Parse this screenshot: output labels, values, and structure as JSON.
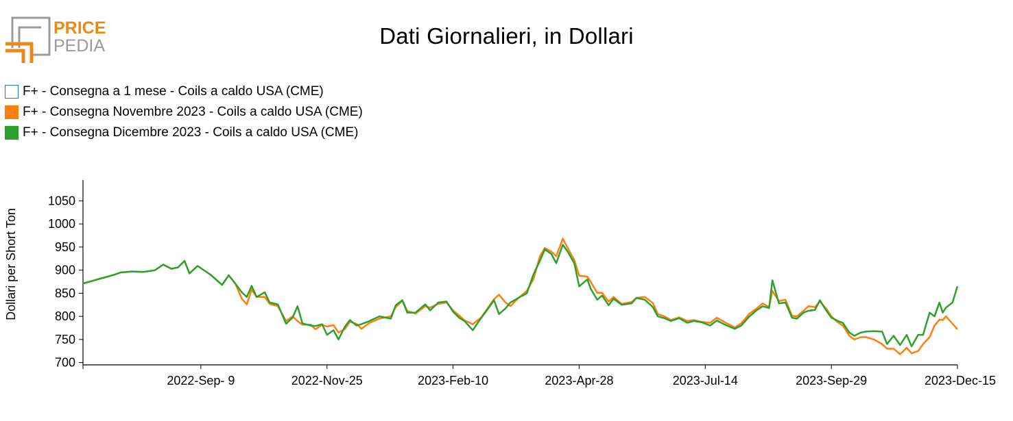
{
  "logo": {
    "word1": "PRICE",
    "word2": "PEDIA"
  },
  "title": "Dati Giornalieri, in Dollari",
  "legend": [
    {
      "label": "F+ - Consegna a 1 mese - Coils a caldo USA (CME)",
      "color": "#1f77b4",
      "filled": false
    },
    {
      "label": "F+ - Consegna Novembre 2023 - Coils a caldo USA (CME)",
      "color": "#ff7f0e",
      "filled": true
    },
    {
      "label": "F+ - Consegna Dicembre 2023 - Coils a caldo USA (CME)",
      "color": "#2ca02c",
      "filled": true
    }
  ],
  "chart_data": {
    "type": "line",
    "title": "Dati Giornalieri, in Dollari",
    "ylabel": "Dollari per Short Ton",
    "xlabel": "",
    "ylim": [
      695,
      1095
    ],
    "xlim": [
      "2022-Jun-29",
      "2023-Dec-15"
    ],
    "x_ticks": [
      "2022-Sep- 9",
      "2022-Nov-25",
      "2023-Feb-10",
      "2023-Apr-28",
      "2023-Jul-14",
      "2023-Sep-29",
      "2023-Dec-15"
    ],
    "y_ticks": [
      700,
      750,
      800,
      850,
      900,
      950,
      1000,
      1050
    ],
    "series": [
      {
        "name": "F+ - Consegna a 1 mese - Coils a caldo USA (CME)",
        "color": "#1f77b4",
        "points": []
      },
      {
        "name": "F+ - Consegna Novembre 2023 - Coils a caldo USA (CME)",
        "color": "#ff7f0e",
        "points": [
          [
            "2022-06-29",
            871
          ],
          [
            "2022-07-08",
            880
          ],
          [
            "2022-07-18",
            890
          ],
          [
            "2022-07-22",
            895
          ],
          [
            "2022-07-29",
            897
          ],
          [
            "2022-08-05",
            896
          ],
          [
            "2022-08-12",
            900
          ],
          [
            "2022-08-17",
            912
          ],
          [
            "2022-08-22",
            903
          ],
          [
            "2022-08-26",
            906
          ],
          [
            "2022-08-30",
            920
          ],
          [
            "2022-09-02",
            893
          ],
          [
            "2022-09-07",
            909
          ],
          [
            "2022-09-12",
            897
          ],
          [
            "2022-09-15",
            890
          ],
          [
            "2022-09-20",
            874
          ],
          [
            "2022-09-22",
            868
          ],
          [
            "2022-09-26",
            889
          ],
          [
            "2022-09-30",
            871
          ],
          [
            "2022-10-04",
            838
          ],
          [
            "2022-10-07",
            826
          ],
          [
            "2022-10-10",
            858
          ],
          [
            "2022-10-13",
            842
          ],
          [
            "2022-10-18",
            842
          ],
          [
            "2022-10-21",
            827
          ],
          [
            "2022-10-26",
            822
          ],
          [
            "2022-10-31",
            790
          ],
          [
            "2022-11-04",
            800
          ],
          [
            "2022-11-07",
            790
          ],
          [
            "2022-11-10",
            782
          ],
          [
            "2022-11-15",
            782
          ],
          [
            "2022-11-18",
            772
          ],
          [
            "2022-11-22",
            782
          ],
          [
            "2022-11-25",
            778
          ],
          [
            "2022-11-29",
            781
          ],
          [
            "2022-12-02",
            765
          ],
          [
            "2022-12-06",
            773
          ],
          [
            "2022-12-09",
            788
          ],
          [
            "2022-12-13",
            784
          ],
          [
            "2022-12-16",
            773
          ],
          [
            "2022-12-21",
            786
          ],
          [
            "2022-12-27",
            795
          ],
          [
            "2023-01-03",
            800
          ],
          [
            "2023-01-06",
            820
          ],
          [
            "2023-01-10",
            834
          ],
          [
            "2023-01-13",
            812
          ],
          [
            "2023-01-18",
            806
          ],
          [
            "2023-01-24",
            822
          ],
          [
            "2023-01-27",
            819
          ],
          [
            "2023-02-01",
            827
          ],
          [
            "2023-02-06",
            830
          ],
          [
            "2023-02-10",
            813
          ],
          [
            "2023-02-14",
            801
          ],
          [
            "2023-02-17",
            791
          ],
          [
            "2023-02-22",
            783
          ],
          [
            "2023-02-27",
            797
          ],
          [
            "2023-03-02",
            812
          ],
          [
            "2023-03-07",
            837
          ],
          [
            "2023-03-10",
            847
          ],
          [
            "2023-03-14",
            830
          ],
          [
            "2023-03-17",
            822
          ],
          [
            "2023-03-22",
            840
          ],
          [
            "2023-03-27",
            855
          ],
          [
            "2023-03-31",
            880
          ],
          [
            "2023-04-04",
            930
          ],
          [
            "2023-04-07",
            948
          ],
          [
            "2023-04-11",
            940
          ],
          [
            "2023-04-14",
            930
          ],
          [
            "2023-04-18",
            968
          ],
          [
            "2023-04-21",
            948
          ],
          [
            "2023-04-25",
            922
          ],
          [
            "2023-04-28",
            888
          ],
          [
            "2023-05-03",
            886
          ],
          [
            "2023-05-05",
            875
          ],
          [
            "2023-05-09",
            851
          ],
          [
            "2023-05-12",
            851
          ],
          [
            "2023-05-16",
            832
          ],
          [
            "2023-05-19",
            842
          ],
          [
            "2023-05-24",
            827
          ],
          [
            "2023-05-30",
            831
          ],
          [
            "2023-06-02",
            840
          ],
          [
            "2023-06-07",
            842
          ],
          [
            "2023-06-12",
            829
          ],
          [
            "2023-06-15",
            805
          ],
          [
            "2023-06-19",
            800
          ],
          [
            "2023-06-23",
            792
          ],
          [
            "2023-06-28",
            798
          ],
          [
            "2023-07-03",
            790
          ],
          [
            "2023-07-07",
            792
          ],
          [
            "2023-07-12",
            788
          ],
          [
            "2023-07-17",
            786
          ],
          [
            "2023-07-21",
            797
          ],
          [
            "2023-07-26",
            787
          ],
          [
            "2023-08-01",
            776
          ],
          [
            "2023-08-05",
            785
          ],
          [
            "2023-08-10",
            806
          ],
          [
            "2023-08-14",
            816
          ],
          [
            "2023-08-18",
            828
          ],
          [
            "2023-08-22",
            820
          ],
          [
            "2023-08-24",
            855
          ],
          [
            "2023-08-28",
            833
          ],
          [
            "2023-09-01",
            836
          ],
          [
            "2023-09-05",
            801
          ],
          [
            "2023-09-08",
            800
          ],
          [
            "2023-09-12",
            812
          ],
          [
            "2023-09-15",
            822
          ],
          [
            "2023-09-19",
            820
          ],
          [
            "2023-09-22",
            832
          ],
          [
            "2023-09-26",
            816
          ],
          [
            "2023-09-29",
            800
          ],
          [
            "2023-10-03",
            787
          ],
          [
            "2023-10-06",
            780
          ],
          [
            "2023-10-10",
            758
          ],
          [
            "2023-10-13",
            750
          ],
          [
            "2023-10-17",
            755
          ],
          [
            "2023-10-20",
            755
          ],
          [
            "2023-10-25",
            750
          ],
          [
            "2023-10-30",
            740
          ],
          [
            "2023-11-02",
            730
          ],
          [
            "2023-11-06",
            730
          ],
          [
            "2023-11-10",
            718
          ],
          [
            "2023-11-14",
            732
          ],
          [
            "2023-11-17",
            720
          ],
          [
            "2023-11-21",
            725
          ],
          [
            "2023-11-24",
            740
          ],
          [
            "2023-11-28",
            755
          ],
          [
            "2023-12-01",
            780
          ],
          [
            "2023-12-04",
            793
          ],
          [
            "2023-12-06",
            792
          ],
          [
            "2023-12-08",
            800
          ],
          [
            "2023-12-12",
            784
          ],
          [
            "2023-12-15",
            772
          ]
        ]
      },
      {
        "name": "F+ - Consegna Dicembre 2023 - Coils a caldo USA (CME)",
        "color": "#2ca02c",
        "points": [
          [
            "2022-06-29",
            871
          ],
          [
            "2022-07-08",
            880
          ],
          [
            "2022-07-18",
            890
          ],
          [
            "2022-07-22",
            895
          ],
          [
            "2022-07-29",
            897
          ],
          [
            "2022-08-05",
            896
          ],
          [
            "2022-08-12",
            900
          ],
          [
            "2022-08-17",
            912
          ],
          [
            "2022-08-22",
            903
          ],
          [
            "2022-08-26",
            906
          ],
          [
            "2022-08-30",
            920
          ],
          [
            "2022-09-02",
            893
          ],
          [
            "2022-09-07",
            909
          ],
          [
            "2022-09-12",
            897
          ],
          [
            "2022-09-15",
            890
          ],
          [
            "2022-09-20",
            874
          ],
          [
            "2022-09-22",
            868
          ],
          [
            "2022-09-26",
            889
          ],
          [
            "2022-09-30",
            871
          ],
          [
            "2022-10-04",
            852
          ],
          [
            "2022-10-07",
            842
          ],
          [
            "2022-10-10",
            866
          ],
          [
            "2022-10-13",
            842
          ],
          [
            "2022-10-18",
            852
          ],
          [
            "2022-10-21",
            830
          ],
          [
            "2022-10-26",
            826
          ],
          [
            "2022-10-31",
            784
          ],
          [
            "2022-11-04",
            797
          ],
          [
            "2022-11-07",
            822
          ],
          [
            "2022-11-10",
            785
          ],
          [
            "2022-11-15",
            780
          ],
          [
            "2022-11-18",
            779
          ],
          [
            "2022-11-22",
            783
          ],
          [
            "2022-11-25",
            760
          ],
          [
            "2022-11-29",
            770
          ],
          [
            "2022-12-02",
            750
          ],
          [
            "2022-12-06",
            778
          ],
          [
            "2022-12-09",
            792
          ],
          [
            "2022-12-13",
            780
          ],
          [
            "2022-12-16",
            783
          ],
          [
            "2022-12-21",
            790
          ],
          [
            "2022-12-27",
            800
          ],
          [
            "2023-01-03",
            795
          ],
          [
            "2023-01-06",
            824
          ],
          [
            "2023-01-10",
            835
          ],
          [
            "2023-01-13",
            808
          ],
          [
            "2023-01-18",
            808
          ],
          [
            "2023-01-24",
            826
          ],
          [
            "2023-01-27",
            813
          ],
          [
            "2023-02-01",
            830
          ],
          [
            "2023-02-06",
            832
          ],
          [
            "2023-02-10",
            810
          ],
          [
            "2023-02-14",
            796
          ],
          [
            "2023-02-17",
            790
          ],
          [
            "2023-02-22",
            770
          ],
          [
            "2023-02-27",
            796
          ],
          [
            "2023-03-02",
            810
          ],
          [
            "2023-03-07",
            835
          ],
          [
            "2023-03-10",
            805
          ],
          [
            "2023-03-14",
            817
          ],
          [
            "2023-03-17",
            830
          ],
          [
            "2023-03-22",
            840
          ],
          [
            "2023-03-27",
            850
          ],
          [
            "2023-03-31",
            890
          ],
          [
            "2023-04-04",
            920
          ],
          [
            "2023-04-07",
            945
          ],
          [
            "2023-04-11",
            935
          ],
          [
            "2023-04-14",
            915
          ],
          [
            "2023-04-18",
            955
          ],
          [
            "2023-04-21",
            940
          ],
          [
            "2023-04-25",
            915
          ],
          [
            "2023-04-28",
            865
          ],
          [
            "2023-05-03",
            880
          ],
          [
            "2023-05-05",
            860
          ],
          [
            "2023-05-09",
            836
          ],
          [
            "2023-05-12",
            845
          ],
          [
            "2023-05-16",
            824
          ],
          [
            "2023-05-19",
            838
          ],
          [
            "2023-05-24",
            825
          ],
          [
            "2023-05-30",
            828
          ],
          [
            "2023-06-02",
            840
          ],
          [
            "2023-06-07",
            836
          ],
          [
            "2023-06-12",
            820
          ],
          [
            "2023-06-15",
            800
          ],
          [
            "2023-06-19",
            796
          ],
          [
            "2023-06-23",
            790
          ],
          [
            "2023-06-28",
            796
          ],
          [
            "2023-07-03",
            786
          ],
          [
            "2023-07-07",
            790
          ],
          [
            "2023-07-12",
            787
          ],
          [
            "2023-07-17",
            780
          ],
          [
            "2023-07-21",
            791
          ],
          [
            "2023-07-26",
            782
          ],
          [
            "2023-08-01",
            773
          ],
          [
            "2023-08-05",
            780
          ],
          [
            "2023-08-10",
            800
          ],
          [
            "2023-08-14",
            812
          ],
          [
            "2023-08-18",
            822
          ],
          [
            "2023-08-22",
            818
          ],
          [
            "2023-08-24",
            878
          ],
          [
            "2023-08-28",
            828
          ],
          [
            "2023-09-01",
            830
          ],
          [
            "2023-09-05",
            797
          ],
          [
            "2023-09-08",
            795
          ],
          [
            "2023-09-12",
            808
          ],
          [
            "2023-09-15",
            812
          ],
          [
            "2023-09-19",
            814
          ],
          [
            "2023-09-22",
            835
          ],
          [
            "2023-09-26",
            812
          ],
          [
            "2023-09-29",
            797
          ],
          [
            "2023-10-03",
            790
          ],
          [
            "2023-10-06",
            786
          ],
          [
            "2023-10-10",
            765
          ],
          [
            "2023-10-13",
            758
          ],
          [
            "2023-10-17",
            765
          ],
          [
            "2023-10-20",
            767
          ],
          [
            "2023-10-25",
            768
          ],
          [
            "2023-10-30",
            767
          ],
          [
            "2023-11-02",
            740
          ],
          [
            "2023-11-06",
            758
          ],
          [
            "2023-11-10",
            738
          ],
          [
            "2023-11-14",
            760
          ],
          [
            "2023-11-17",
            735
          ],
          [
            "2023-11-21",
            760
          ],
          [
            "2023-11-24",
            760
          ],
          [
            "2023-11-28",
            808
          ],
          [
            "2023-12-01",
            800
          ],
          [
            "2023-12-04",
            830
          ],
          [
            "2023-12-06",
            808
          ],
          [
            "2023-12-08",
            819
          ],
          [
            "2023-12-12",
            830
          ],
          [
            "2023-12-15",
            865
          ]
        ]
      }
    ]
  }
}
